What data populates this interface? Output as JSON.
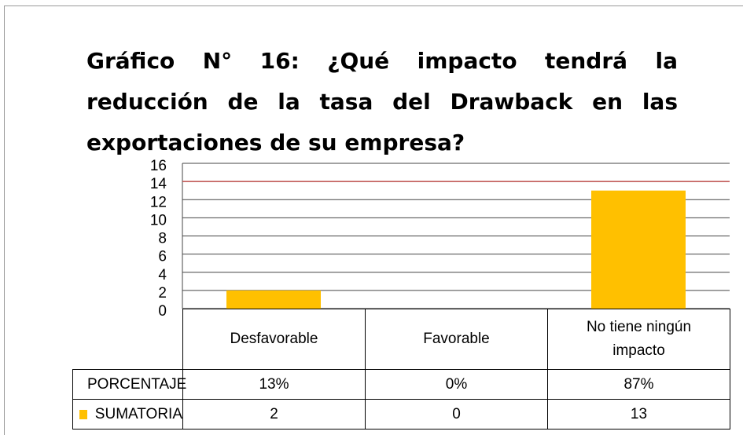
{
  "chart_data": {
    "type": "bar",
    "title": "Gráfico N° 16: ¿Qué impacto tendrá la reducción de la tasa del Drawback en las exportaciones de su empresa?",
    "categories": [
      "Desfavorable",
      "Favorable",
      "No tiene ningún impacto"
    ],
    "series": [
      {
        "name": "PORCENTAJE",
        "color": "#c0504d",
        "values": [
          13,
          0,
          87
        ],
        "value_labels": [
          "13%",
          "0%",
          "87%"
        ]
      },
      {
        "name": "SUMATORIA",
        "color": "#ffc000",
        "values": [
          2,
          0,
          13
        ]
      }
    ],
    "ylim": [
      0,
      16
    ],
    "yticks": [
      0,
      2,
      4,
      6,
      8,
      10,
      12,
      14,
      16
    ],
    "grid": true
  }
}
